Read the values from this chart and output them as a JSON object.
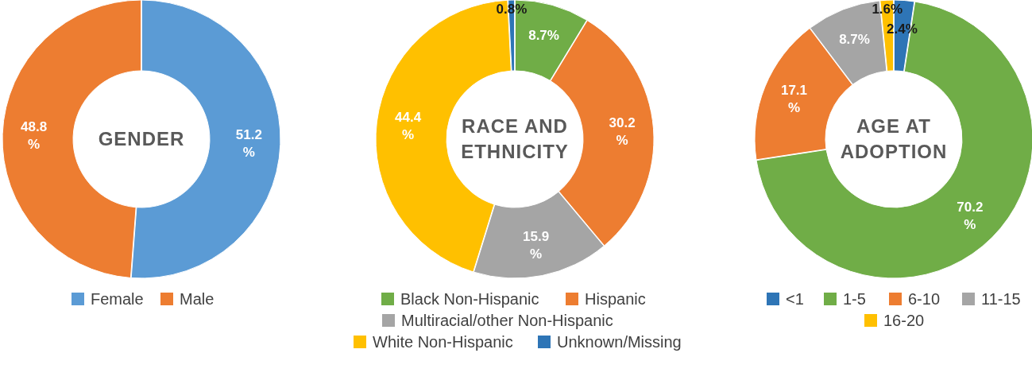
{
  "chart_data": [
    {
      "type": "donut",
      "title": "GENDER",
      "categories": [
        "Female",
        "Male"
      ],
      "values": [
        51.2,
        48.8
      ],
      "colors": [
        "#5b9bd5",
        "#ed7d31"
      ],
      "value_labels": [
        "51.2 %",
        "48.8 %"
      ],
      "legend": "bottom"
    },
    {
      "type": "donut",
      "title": "RACE AND ETHNICITY",
      "categories": [
        "Black Non-Hispanic",
        "Hispanic",
        "Multiracial/other  Non-Hispanic",
        "White Non-Hispanic",
        "Unknown/Missing"
      ],
      "values": [
        8.7,
        30.2,
        15.9,
        44.4,
        0.8
      ],
      "colors": [
        "#70ad47",
        "#ed7d31",
        "#a5a5a5",
        "#ffc000",
        "#2e75b6"
      ],
      "value_labels": [
        "8.7%",
        "30.2 %",
        "15.9 %",
        "44.4 %",
        "0.8%"
      ],
      "legend": "bottom"
    },
    {
      "type": "donut",
      "title": "AGE AT ADOPTION",
      "categories": [
        "<1",
        "1-5",
        "6-10",
        "11-15",
        "16-20"
      ],
      "values": [
        2.4,
        70.2,
        17.1,
        8.7,
        1.6
      ],
      "colors": [
        "#2e75b6",
        "#70ad47",
        "#ed7d31",
        "#a5a5a5",
        "#ffc000"
      ],
      "value_labels": [
        "2.4%",
        "70.2 %",
        "17.1 %",
        "8.7%",
        "1.6%"
      ],
      "legend": "bottom"
    }
  ]
}
